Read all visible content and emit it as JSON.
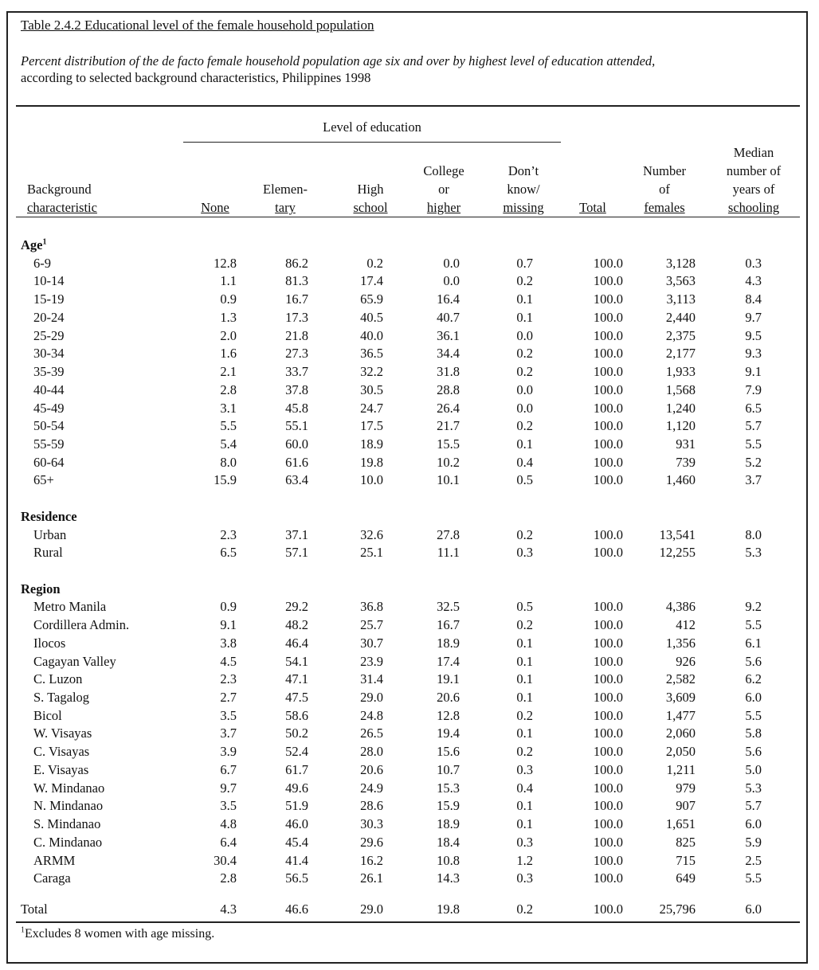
{
  "title": "Table 2.4.2  Educational level of the female household population",
  "subtitle_italic": "Percent distribution of the de facto female household population age six and over by highest level of education attended,",
  "subtitle_plain": "according to selected background characteristics, Philippines 1998",
  "header": {
    "group": "Level of education",
    "background_l1": "Background",
    "background_l2": "characteristic",
    "none": "None",
    "elem_l1": "Elemen-",
    "elem_l2": "tary",
    "high_l1": "High",
    "high_l2": "school",
    "college_l1": "College",
    "college_l2": "or",
    "college_l3": "higher",
    "dk_l1": "Don’t",
    "dk_l2": "know/",
    "dk_l3": "missing",
    "total": "Total",
    "num_l1": "Number",
    "num_l2": "of",
    "num_l3": "females",
    "med_l1": "Median",
    "med_l2": "number of",
    "med_l3": "years of",
    "med_l4": "schooling"
  },
  "sections": [
    {
      "label": "Age",
      "sup": "1",
      "rows": [
        [
          "6-9",
          "12.8",
          "86.2",
          "0.2",
          "0.0",
          "0.7",
          "100.0",
          "3,128",
          "0.3"
        ],
        [
          "10-14",
          "1.1",
          "81.3",
          "17.4",
          "0.0",
          "0.2",
          "100.0",
          "3,563",
          "4.3"
        ],
        [
          "15-19",
          "0.9",
          "16.7",
          "65.9",
          "16.4",
          "0.1",
          "100.0",
          "3,113",
          "8.4"
        ],
        [
          "20-24",
          "1.3",
          "17.3",
          "40.5",
          "40.7",
          "0.1",
          "100.0",
          "2,440",
          "9.7"
        ],
        [
          "25-29",
          "2.0",
          "21.8",
          "40.0",
          "36.1",
          "0.0",
          "100.0",
          "2,375",
          "9.5"
        ],
        [
          "30-34",
          "1.6",
          "27.3",
          "36.5",
          "34.4",
          "0.2",
          "100.0",
          "2,177",
          "9.3"
        ],
        [
          "35-39",
          "2.1",
          "33.7",
          "32.2",
          "31.8",
          "0.2",
          "100.0",
          "1,933",
          "9.1"
        ],
        [
          "40-44",
          "2.8",
          "37.8",
          "30.5",
          "28.8",
          "0.0",
          "100.0",
          "1,568",
          "7.9"
        ],
        [
          "45-49",
          "3.1",
          "45.8",
          "24.7",
          "26.4",
          "0.0",
          "100.0",
          "1,240",
          "6.5"
        ],
        [
          "50-54",
          "5.5",
          "55.1",
          "17.5",
          "21.7",
          "0.2",
          "100.0",
          "1,120",
          "5.7"
        ],
        [
          "55-59",
          "5.4",
          "60.0",
          "18.9",
          "15.5",
          "0.1",
          "100.0",
          "931",
          "5.5"
        ],
        [
          "60-64",
          "8.0",
          "61.6",
          "19.8",
          "10.2",
          "0.4",
          "100.0",
          "739",
          "5.2"
        ],
        [
          "65+",
          "15.9",
          "63.4",
          "10.0",
          "10.1",
          "0.5",
          "100.0",
          "1,460",
          "3.7"
        ]
      ]
    },
    {
      "label": "Residence",
      "sup": "",
      "rows": [
        [
          "Urban",
          "2.3",
          "37.1",
          "32.6",
          "27.8",
          "0.2",
          "100.0",
          "13,541",
          "8.0"
        ],
        [
          "Rural",
          "6.5",
          "57.1",
          "25.1",
          "11.1",
          "0.3",
          "100.0",
          "12,255",
          "5.3"
        ]
      ]
    },
    {
      "label": "Region",
      "sup": "",
      "rows": [
        [
          "Metro Manila",
          "0.9",
          "29.2",
          "36.8",
          "32.5",
          "0.5",
          "100.0",
          "4,386",
          "9.2"
        ],
        [
          "Cordillera Admin.",
          "9.1",
          "48.2",
          "25.7",
          "16.7",
          "0.2",
          "100.0",
          "412",
          "5.5"
        ],
        [
          "Ilocos",
          "3.8",
          "46.4",
          "30.7",
          "18.9",
          "0.1",
          "100.0",
          "1,356",
          "6.1"
        ],
        [
          "Cagayan Valley",
          "4.5",
          "54.1",
          "23.9",
          "17.4",
          "0.1",
          "100.0",
          "926",
          "5.6"
        ],
        [
          "C. Luzon",
          "2.3",
          "47.1",
          "31.4",
          "19.1",
          "0.1",
          "100.0",
          "2,582",
          "6.2"
        ],
        [
          "S. Tagalog",
          "2.7",
          "47.5",
          "29.0",
          "20.6",
          "0.1",
          "100.0",
          "3,609",
          "6.0"
        ],
        [
          "Bicol",
          "3.5",
          "58.6",
          "24.8",
          "12.8",
          "0.2",
          "100.0",
          "1,477",
          "5.5"
        ],
        [
          "W. Visayas",
          "3.7",
          "50.2",
          "26.5",
          "19.4",
          "0.1",
          "100.0",
          "2,060",
          "5.8"
        ],
        [
          "C. Visayas",
          "3.9",
          "52.4",
          "28.0",
          "15.6",
          "0.2",
          "100.0",
          "2,050",
          "5.6"
        ],
        [
          "E. Visayas",
          "6.7",
          "61.7",
          "20.6",
          "10.7",
          "0.3",
          "100.0",
          "1,211",
          "5.0"
        ],
        [
          "W. Mindanao",
          "9.7",
          "49.6",
          "24.9",
          "15.3",
          "0.4",
          "100.0",
          "979",
          "5.3"
        ],
        [
          "N. Mindanao",
          "3.5",
          "51.9",
          "28.6",
          "15.9",
          "0.1",
          "100.0",
          "907",
          "5.7"
        ],
        [
          "S. Mindanao",
          "4.8",
          "46.0",
          "30.3",
          "18.9",
          "0.1",
          "100.0",
          "1,651",
          "6.0"
        ],
        [
          "C. Mindanao",
          "6.4",
          "45.4",
          "29.6",
          "18.4",
          "0.3",
          "100.0",
          "825",
          "5.9"
        ],
        [
          "ARMM",
          "30.4",
          "41.4",
          "16.2",
          "10.8",
          "1.2",
          "100.0",
          "715",
          "2.5"
        ],
        [
          "Caraga",
          "2.8",
          "56.5",
          "26.1",
          "14.3",
          "0.3",
          "100.0",
          "649",
          "5.5"
        ]
      ]
    }
  ],
  "total_row": [
    "Total",
    "4.3",
    "46.6",
    "29.0",
    "19.8",
    "0.2",
    "100.0",
    "25,796",
    "6.0"
  ],
  "footnote_sup": "1",
  "footnote": "Excludes 8 women with age missing."
}
